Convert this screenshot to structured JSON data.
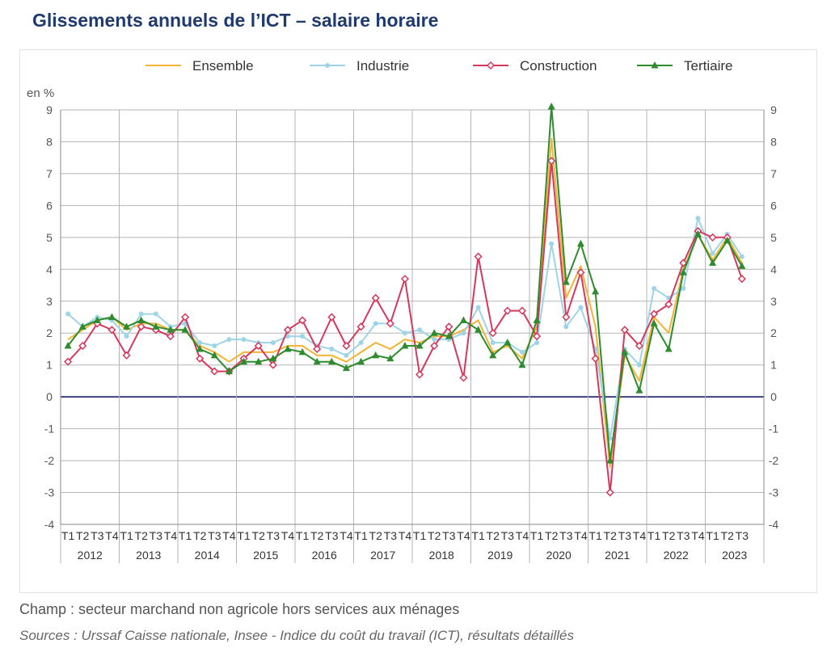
{
  "title": "Glissements annuels de l’ICT – salaire horaire",
  "note": "Champ : secteur marchand non agricole hors services aux ménages",
  "source": "Sources : Urssaf Caisse nationale, Insee - Indice du coût du travail (ICT), résultats détaillés",
  "chart_data": {
    "type": "line",
    "ylabel": "en %",
    "ylim": [
      -4,
      9
    ],
    "yticks": [
      -4,
      -3,
      -2,
      -1,
      0,
      1,
      2,
      3,
      4,
      5,
      6,
      7,
      8,
      9
    ],
    "grid": true,
    "legend_position": "top",
    "years": [
      "2012",
      "2013",
      "2014",
      "2015",
      "2016",
      "2017",
      "2018",
      "2019",
      "2020",
      "2021",
      "2022",
      "2023"
    ],
    "quarters_per_year": [
      4,
      4,
      4,
      4,
      4,
      4,
      4,
      4,
      4,
      4,
      4,
      3
    ],
    "quarter_labels": [
      "T1",
      "T2",
      "T3",
      "T4"
    ],
    "series": [
      {
        "name": "Ensemble",
        "color": "#f5b335",
        "marker": "none",
        "values": [
          1.8,
          2.1,
          2.4,
          2.5,
          2.1,
          2.3,
          2.3,
          2.1,
          2.1,
          1.6,
          1.4,
          1.1,
          1.4,
          1.4,
          1.4,
          1.6,
          1.6,
          1.3,
          1.3,
          1.1,
          1.4,
          1.7,
          1.5,
          1.8,
          1.7,
          1.9,
          1.9,
          2.1,
          2.4,
          1.4,
          1.6,
          1.2,
          2.2,
          8.1,
          3.1,
          4.1,
          2.2,
          -2.2,
          1.3,
          0.5,
          2.5,
          2.0,
          4.0,
          5.1,
          4.3,
          5.0,
          4.2
        ]
      },
      {
        "name": "Industrie",
        "color": "#9dd4e8",
        "marker": "dot",
        "values": [
          2.6,
          2.2,
          2.5,
          2.4,
          1.9,
          2.6,
          2.6,
          2.2,
          2.3,
          1.7,
          1.6,
          1.8,
          1.8,
          1.7,
          1.7,
          1.9,
          1.9,
          1.6,
          1.5,
          1.3,
          1.7,
          2.3,
          2.3,
          2.0,
          2.1,
          1.8,
          1.8,
          2.0,
          2.8,
          1.7,
          1.7,
          1.4,
          1.7,
          4.8,
          2.2,
          2.8,
          1.5,
          -1.3,
          1.5,
          1.0,
          3.4,
          3.1,
          3.4,
          5.6,
          4.5,
          5.1,
          4.4
        ]
      },
      {
        "name": "Construction",
        "color": "#d6385c",
        "marker": "diamond",
        "values": [
          1.1,
          1.6,
          2.3,
          2.1,
          1.3,
          2.2,
          2.1,
          1.9,
          2.5,
          1.2,
          0.8,
          0.8,
          1.2,
          1.6,
          1.0,
          2.1,
          2.4,
          1.5,
          2.5,
          1.6,
          2.2,
          3.1,
          2.3,
          3.7,
          0.7,
          1.6,
          2.2,
          0.6,
          4.4,
          2.0,
          2.7,
          2.7,
          1.9,
          7.4,
          2.5,
          3.9,
          1.2,
          -3.0,
          2.1,
          1.6,
          2.6,
          2.9,
          4.2,
          5.2,
          5.0,
          5.0,
          3.7
        ]
      },
      {
        "name": "Tertiaire",
        "color": "#2e8b2e",
        "marker": "triangle",
        "values": [
          1.6,
          2.2,
          2.4,
          2.5,
          2.2,
          2.4,
          2.2,
          2.1,
          2.1,
          1.5,
          1.3,
          0.8,
          1.1,
          1.1,
          1.2,
          1.5,
          1.4,
          1.1,
          1.1,
          0.9,
          1.1,
          1.3,
          1.2,
          1.6,
          1.6,
          2.0,
          1.9,
          2.4,
          2.1,
          1.3,
          1.7,
          1.0,
          2.4,
          9.1,
          3.6,
          4.8,
          3.3,
          -2.0,
          1.4,
          0.2,
          2.3,
          1.5,
          3.9,
          5.1,
          4.2,
          4.9,
          4.1
        ]
      }
    ]
  }
}
